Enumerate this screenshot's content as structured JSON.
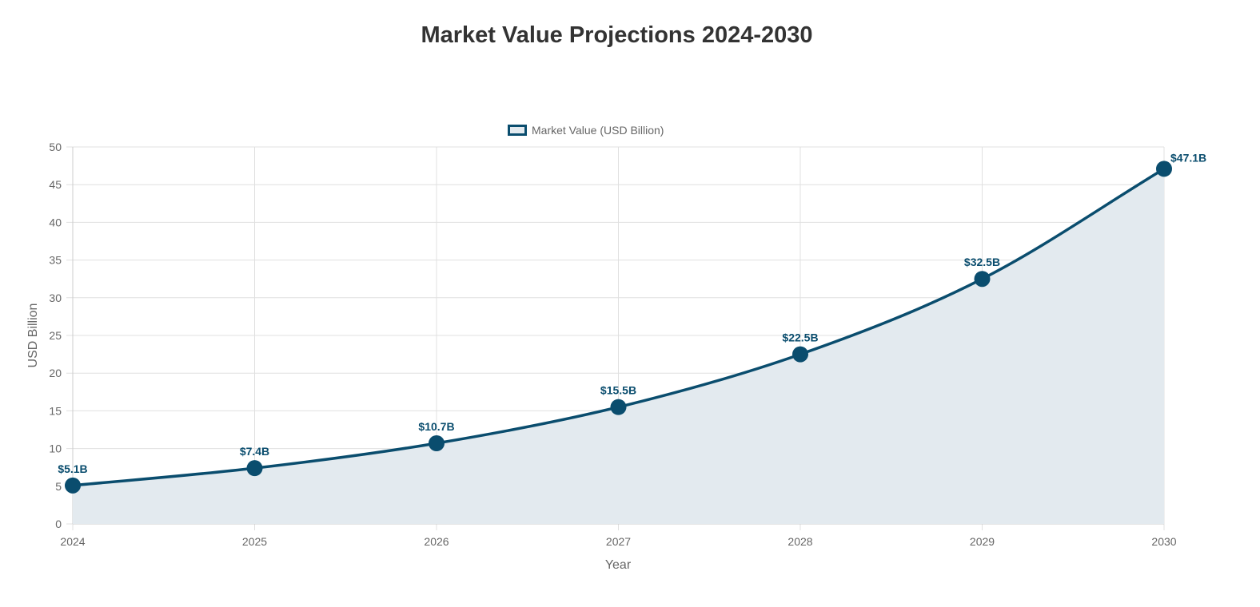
{
  "chart_data": {
    "type": "line",
    "title": "Market Value Projections 2024-2030",
    "xlabel": "Year",
    "ylabel": "USD Billion",
    "categories": [
      "2024",
      "2025",
      "2026",
      "2027",
      "2028",
      "2029",
      "2030"
    ],
    "series": [
      {
        "name": "Market Value (USD Billion)",
        "values": [
          5.1,
          7.4,
          10.7,
          15.5,
          22.5,
          32.5,
          47.1
        ],
        "data_labels": [
          "$5.1B",
          "$7.4B",
          "$10.7B",
          "$15.5B",
          "$22.5B",
          "$32.5B",
          "$47.1B"
        ],
        "color": "#0a4d6e",
        "fill_color": "#e3eaef",
        "filled": true
      }
    ],
    "yticks": [
      "0",
      "5",
      "10",
      "15",
      "20",
      "25",
      "30",
      "35",
      "40",
      "45",
      "50"
    ],
    "ylim": [
      0,
      50
    ],
    "grid": true,
    "legend_position": "top-center"
  }
}
